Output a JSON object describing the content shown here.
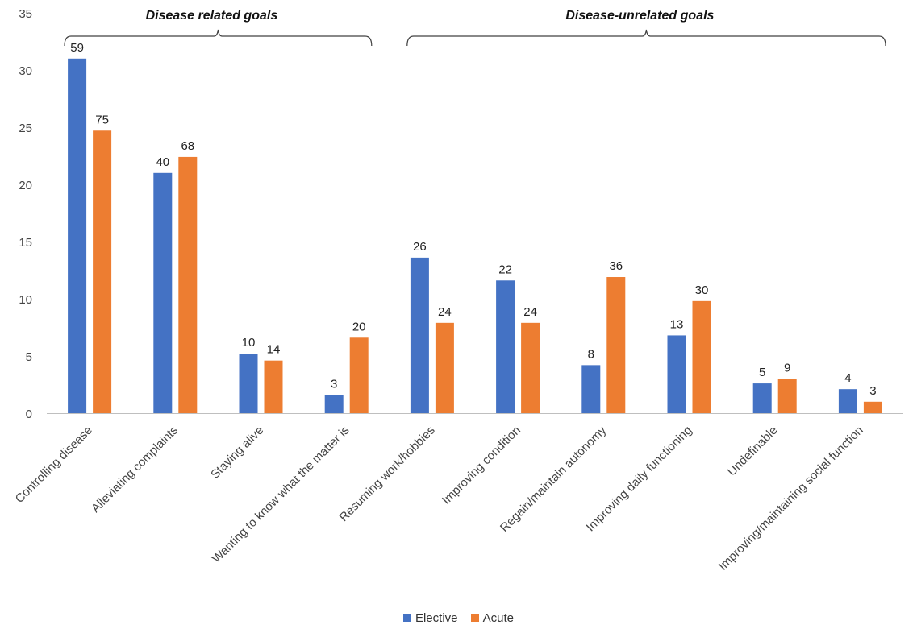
{
  "chart_data": {
    "type": "bar",
    "categories": [
      "Controlling disease",
      "Alleviating complaints",
      "Staying alive",
      "Wanting to know what the matter is",
      "Resuming work/hobbies",
      "Improving condition",
      "Regain/maintain autonomy",
      "Improving daily functioning",
      "Undefinable",
      "Improving/maintaining social function"
    ],
    "series": [
      {
        "name": "Elective",
        "color": "#4472C4",
        "values": [
          31.0,
          21.0,
          5.2,
          1.6,
          13.6,
          11.6,
          4.2,
          6.8,
          2.6,
          2.1
        ],
        "labels": [
          "59",
          "40",
          "10",
          "3",
          "26",
          "22",
          "8",
          "13",
          "5",
          "4"
        ]
      },
      {
        "name": "Acute",
        "color": "#ED7D31",
        "values": [
          24.7,
          22.4,
          4.6,
          6.6,
          7.9,
          7.9,
          11.9,
          9.8,
          3.0,
          1.0
        ],
        "labels": [
          "75",
          "68",
          "14",
          "20",
          "24",
          "24",
          "36",
          "30",
          "9",
          "3"
        ]
      }
    ],
    "ylim": [
      0,
      35
    ],
    "yticks": [
      "0",
      "5",
      "10",
      "15",
      "20",
      "25",
      "30",
      "35"
    ],
    "grid": false,
    "legend_position": "bottom",
    "groups": [
      {
        "label": "Disease related goals",
        "first_category": 0,
        "last_category": 3
      },
      {
        "label": "Disease-unrelated goals",
        "first_category": 4,
        "last_category": 9
      }
    ]
  }
}
